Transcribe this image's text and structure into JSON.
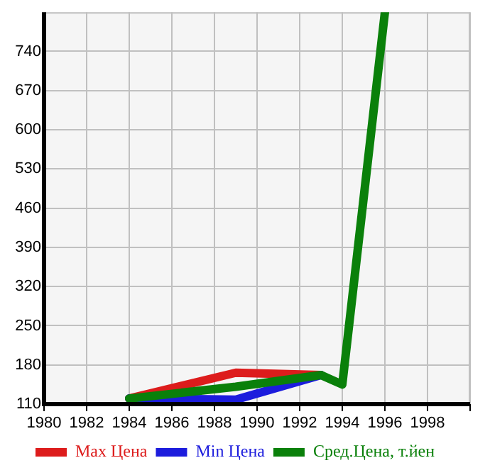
{
  "chart_data": {
    "type": "line",
    "x": [
      1984,
      1989,
      1993,
      1994,
      1996
    ],
    "series": [
      {
        "name": "Max Цена",
        "color": "#dd1c1c",
        "values": [
          120,
          166,
          162,
          null,
          null
        ]
      },
      {
        "name": "Min Цена",
        "color": "#1c1cdd",
        "values": [
          120,
          118,
          162,
          null,
          null
        ]
      },
      {
        "name": "Сред.Цена, т.йен",
        "color": "#0a800a",
        "values": [
          120,
          141,
          162,
          145,
          810
        ]
      }
    ],
    "xlim": [
      1980,
      2000
    ],
    "xticks": [
      1980,
      1982,
      1984,
      1986,
      1988,
      1990,
      1992,
      1994,
      1996,
      1998,
      {
        "value": 2000,
        "label": null
      }
    ],
    "ylim": [
      110,
      810
    ],
    "yticks": [
      110,
      180,
      250,
      320,
      390,
      460,
      530,
      600,
      670,
      740
    ],
    "grid": true,
    "legend": "bottom",
    "marker": "none",
    "line_style": "solid"
  }
}
